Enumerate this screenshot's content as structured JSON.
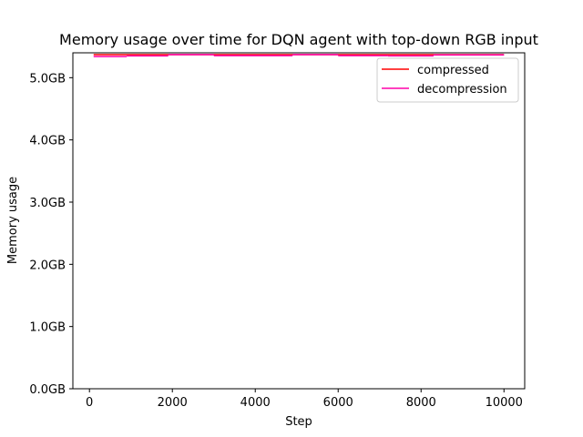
{
  "chart_data": {
    "type": "line",
    "title": "Memory usage over time for DQN agent with top-down RGB input",
    "xlabel": "Step",
    "ylabel": "Memory usage",
    "xlim": [
      -400,
      10500
    ],
    "ylim": [
      0,
      5.4
    ],
    "x_ticks": [
      0,
      2000,
      4000,
      6000,
      8000,
      10000
    ],
    "x_tick_labels": [
      "0",
      "2000",
      "4000",
      "6000",
      "8000",
      "10000"
    ],
    "y_ticks": [
      0,
      1,
      2,
      3,
      4,
      5
    ],
    "y_tick_labels": [
      "0.0GB",
      "1.0GB",
      "2.0GB",
      "3.0GB",
      "4.0GB",
      "5.0GB"
    ],
    "legend_position": "top-right",
    "grid": false,
    "series": [
      {
        "name": "compressed",
        "color": "#ff0000",
        "x": [
          100,
          10000
        ],
        "y": [
          5.37,
          5.37
        ]
      },
      {
        "name": "decompression",
        "color": "#ff00aa",
        "segments": [
          {
            "x": [
              100,
              900
            ],
            "y": [
              5.34,
              5.34
            ]
          },
          {
            "x": [
              900,
              1900
            ],
            "y": [
              5.35,
              5.35
            ]
          },
          {
            "x": [
              1900,
              3000
            ],
            "y": [
              5.37,
              5.37
            ]
          },
          {
            "x": [
              3000,
              4900
            ],
            "y": [
              5.355,
              5.355
            ]
          },
          {
            "x": [
              4900,
              6000
            ],
            "y": [
              5.37,
              5.37
            ]
          },
          {
            "x": [
              6000,
              7200
            ],
            "y": [
              5.355,
              5.355
            ]
          },
          {
            "x": [
              7200,
              8300
            ],
            "y": [
              5.35,
              5.35
            ]
          },
          {
            "x": [
              8300,
              10000
            ],
            "y": [
              5.365,
              5.365
            ]
          }
        ]
      }
    ]
  }
}
